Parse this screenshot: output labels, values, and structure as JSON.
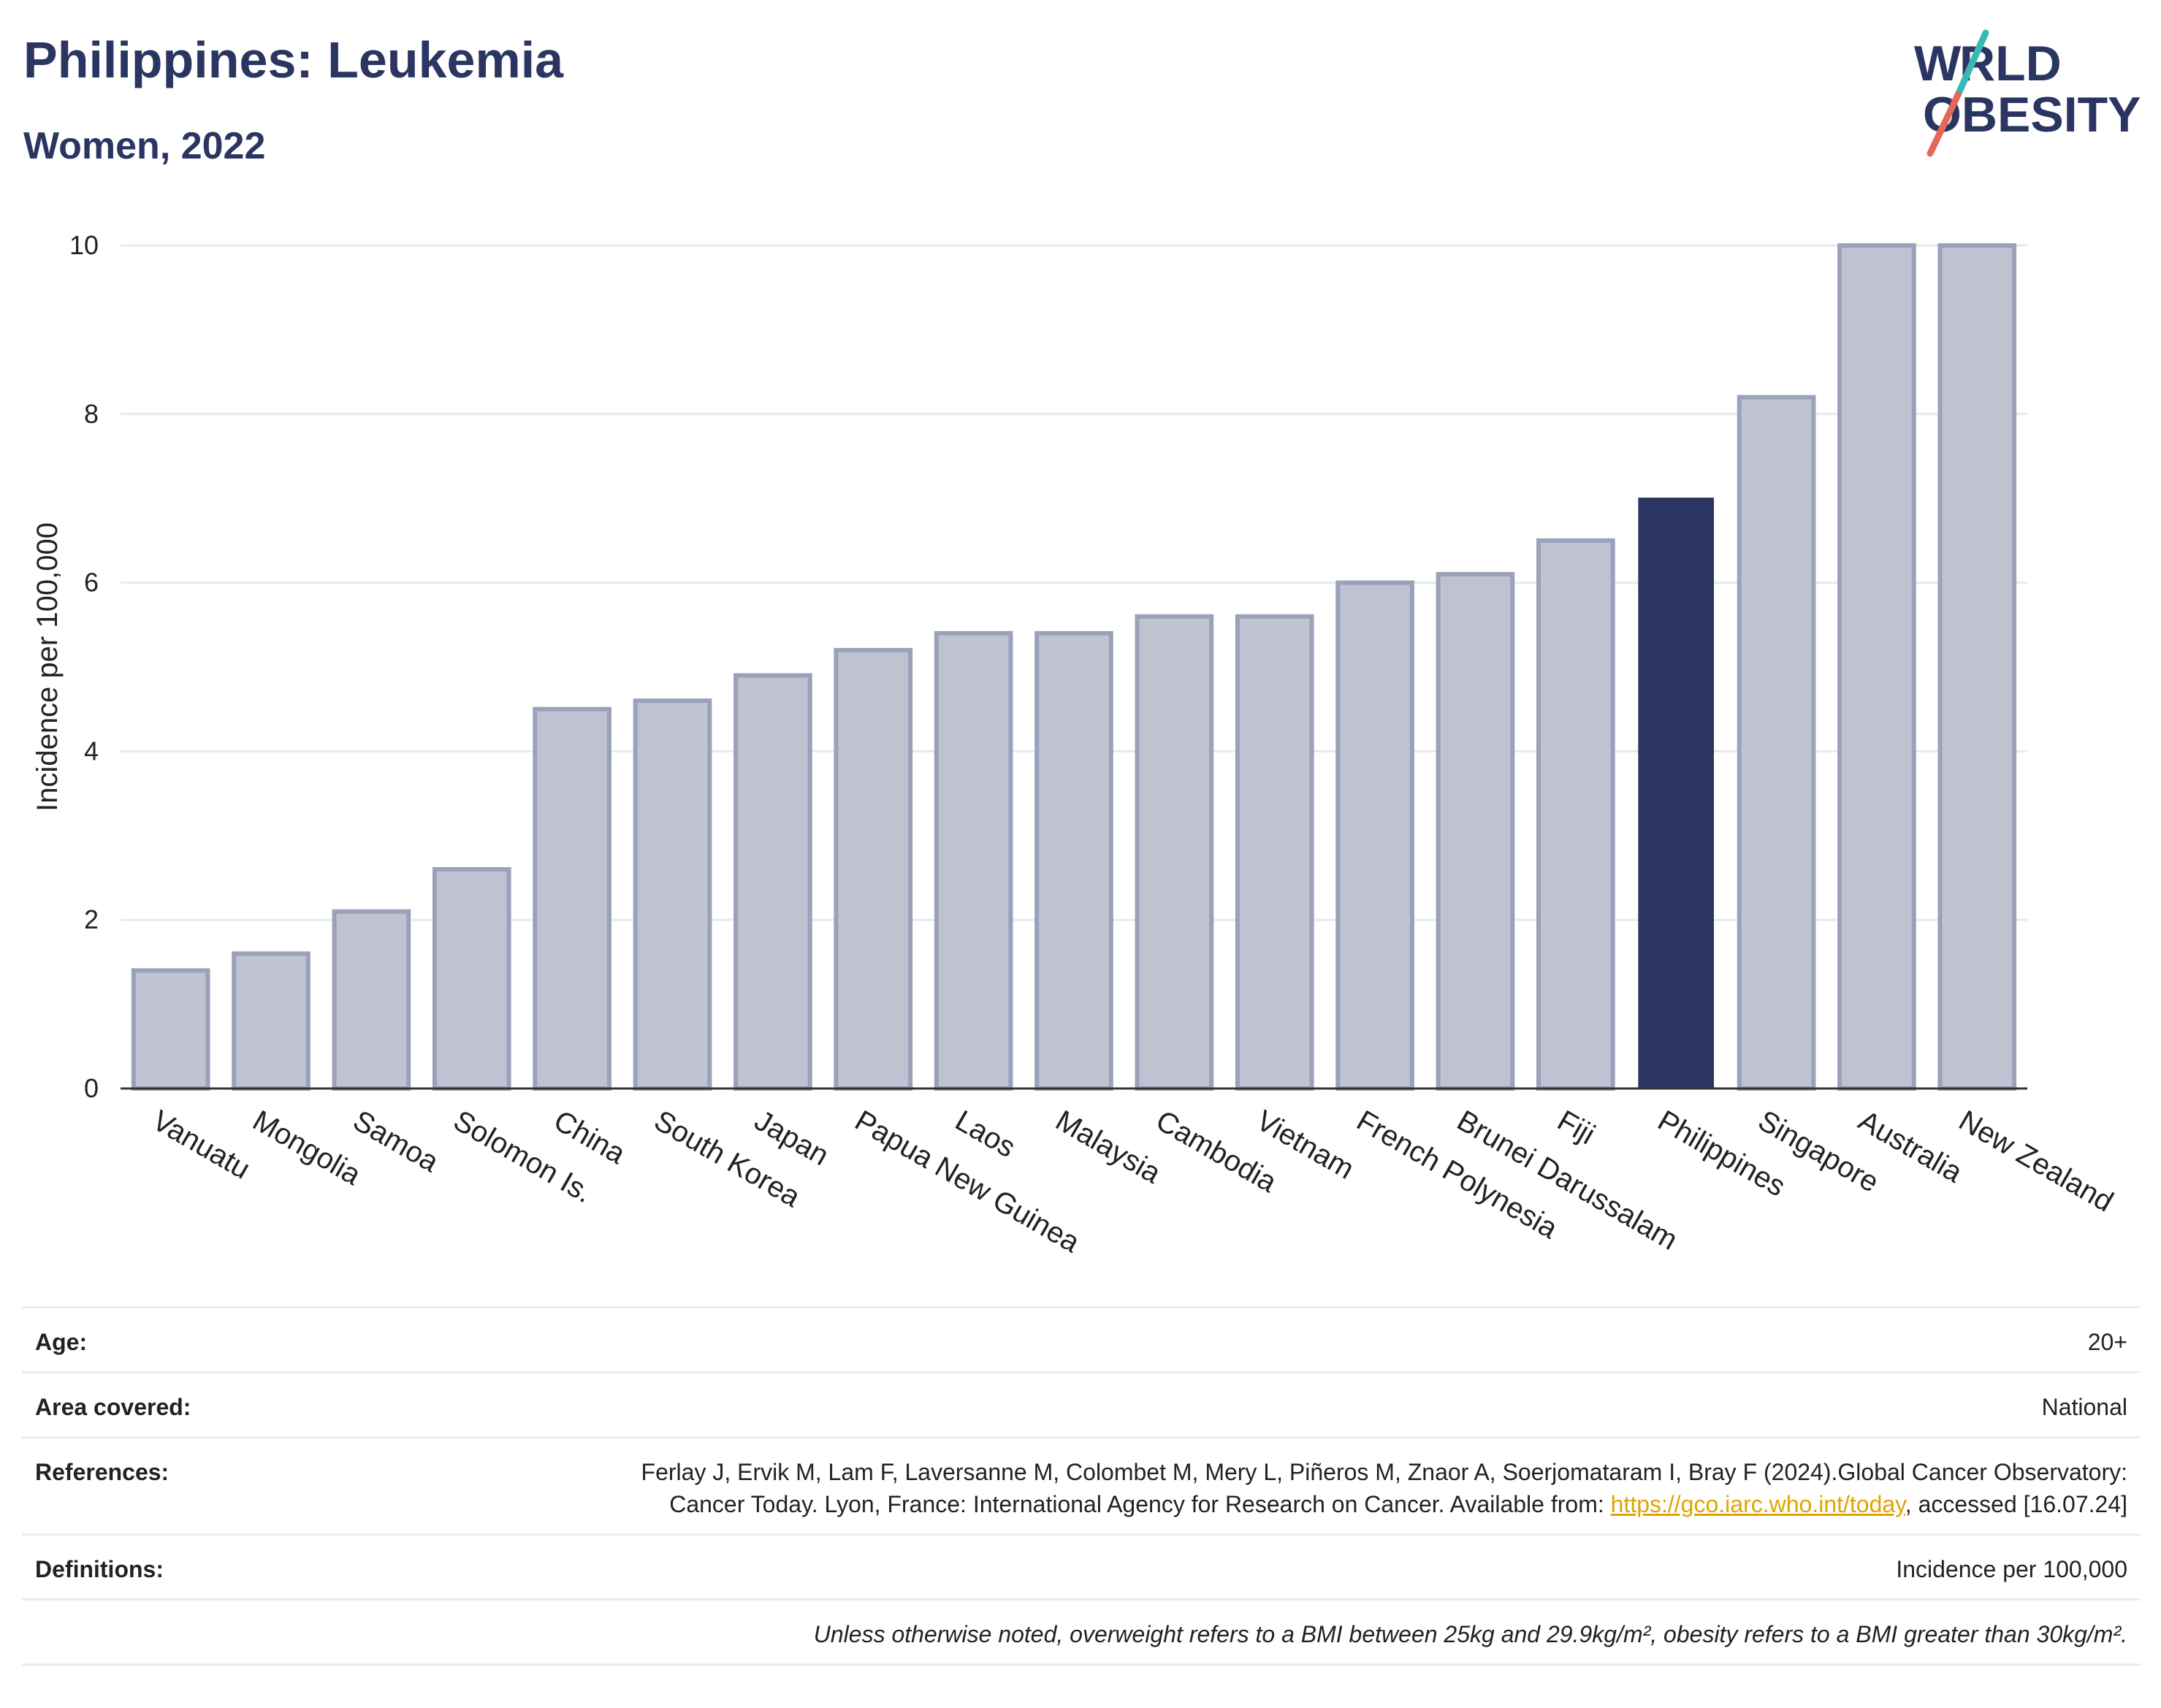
{
  "header": {
    "title": "Philippines: Leukemia",
    "subtitle": "Women, 2022",
    "logo_line1": "WORLD",
    "logo_line2": "OBESITY"
  },
  "colors": {
    "title": "#2a3561",
    "highlight_bar": "#2a3561",
    "other_bar_fill": "#bfc3d1",
    "other_bar_stroke": "#9aa1b8",
    "logo_teal": "#3bb8b5",
    "logo_red": "#e4675a",
    "link": "#e0a400"
  },
  "chart_data": {
    "type": "bar",
    "ylabel": "Incidence per 100,000",
    "ylim": [
      0,
      10
    ],
    "yticks": [
      0,
      2,
      4,
      6,
      8,
      10
    ],
    "grid": true,
    "highlight": "Philippines",
    "categories": [
      "Vanuatu",
      "Mongolia",
      "Samoa",
      "Solomon Is.",
      "China",
      "South Korea",
      "Japan",
      "Papua New Guinea",
      "Laos",
      "Malaysia",
      "Cambodia",
      "Vietnam",
      "French Polynesia",
      "Brunei Darussalam",
      "Fiji",
      "Philippines",
      "Singapore",
      "Australia",
      "New Zealand"
    ],
    "values": [
      1.4,
      1.6,
      2.1,
      2.6,
      4.5,
      4.6,
      4.9,
      5.2,
      5.4,
      5.4,
      5.6,
      5.6,
      6.0,
      6.1,
      6.5,
      7.0,
      8.2,
      10.0,
      10.0
    ]
  },
  "info": {
    "age_label": "Age:",
    "age_value": "20+",
    "area_label": "Area covered:",
    "area_value": "National",
    "references_label": "References:",
    "references_text_1": "Ferlay J, Ervik M, Lam F, Laversanne M, Colombet M, Mery L, Piñeros M, Znaor A, Soerjomataram I, Bray F (2024).Global Cancer Observatory: Cancer Today. Lyon, France: International Agency for Research on Cancer. Available from: ",
    "references_link": "https://gco.iarc.who.int/today",
    "references_text_2": ", accessed [16.07.24]",
    "definitions_label": "Definitions:",
    "definitions_value": "Incidence per 100,000",
    "note": "Unless otherwise noted, overweight refers to a BMI between 25kg and 29.9kg/m², obesity refers to a BMI greater than 30kg/m²."
  }
}
